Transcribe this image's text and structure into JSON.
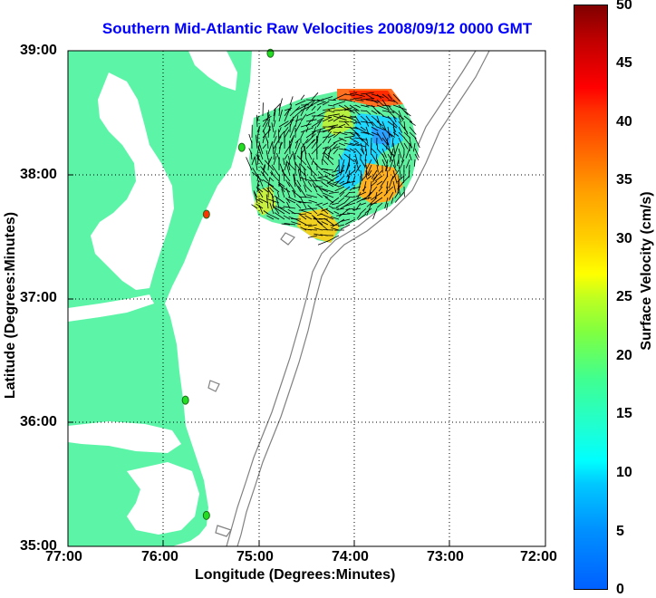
{
  "title": "Southern Mid-Atlantic Raw Velocities 2008/09/12 0000 GMT",
  "map": {
    "xlabel": "Longitude (Degrees:Minutes)",
    "ylabel": "Latitude (Degrees:Minutes)",
    "lon_ticks": [
      "77:00",
      "76:00",
      "75:00",
      "74:00",
      "73:00",
      "72:00"
    ],
    "lat_ticks": [
      "39:00",
      "38:00",
      "37:00",
      "36:00",
      "35:00"
    ],
    "lon_range": [
      -77,
      -72
    ],
    "lat_range": [
      35,
      39
    ],
    "grid": "dotted",
    "land_color": "#5cf5a8",
    "isobath_color": "#808080"
  },
  "colorbar": {
    "label": "Surface Velocity (cm/s)",
    "ticks": [
      "50",
      "45",
      "40",
      "35",
      "30",
      "25",
      "20",
      "15",
      "10",
      "5",
      "0"
    ],
    "range": [
      0,
      50
    ]
  },
  "stations": [
    {
      "lon": -74.88,
      "lat": 38.98,
      "color": "#22dd22"
    },
    {
      "lon": -75.18,
      "lat": 38.22,
      "color": "#22dd22"
    },
    {
      "lon": -75.55,
      "lat": 37.68,
      "color": "#ff3300"
    },
    {
      "lon": -75.77,
      "lat": 36.18,
      "color": "#22dd22"
    },
    {
      "lon": -75.55,
      "lat": 35.25,
      "color": "#22dd22"
    }
  ]
}
